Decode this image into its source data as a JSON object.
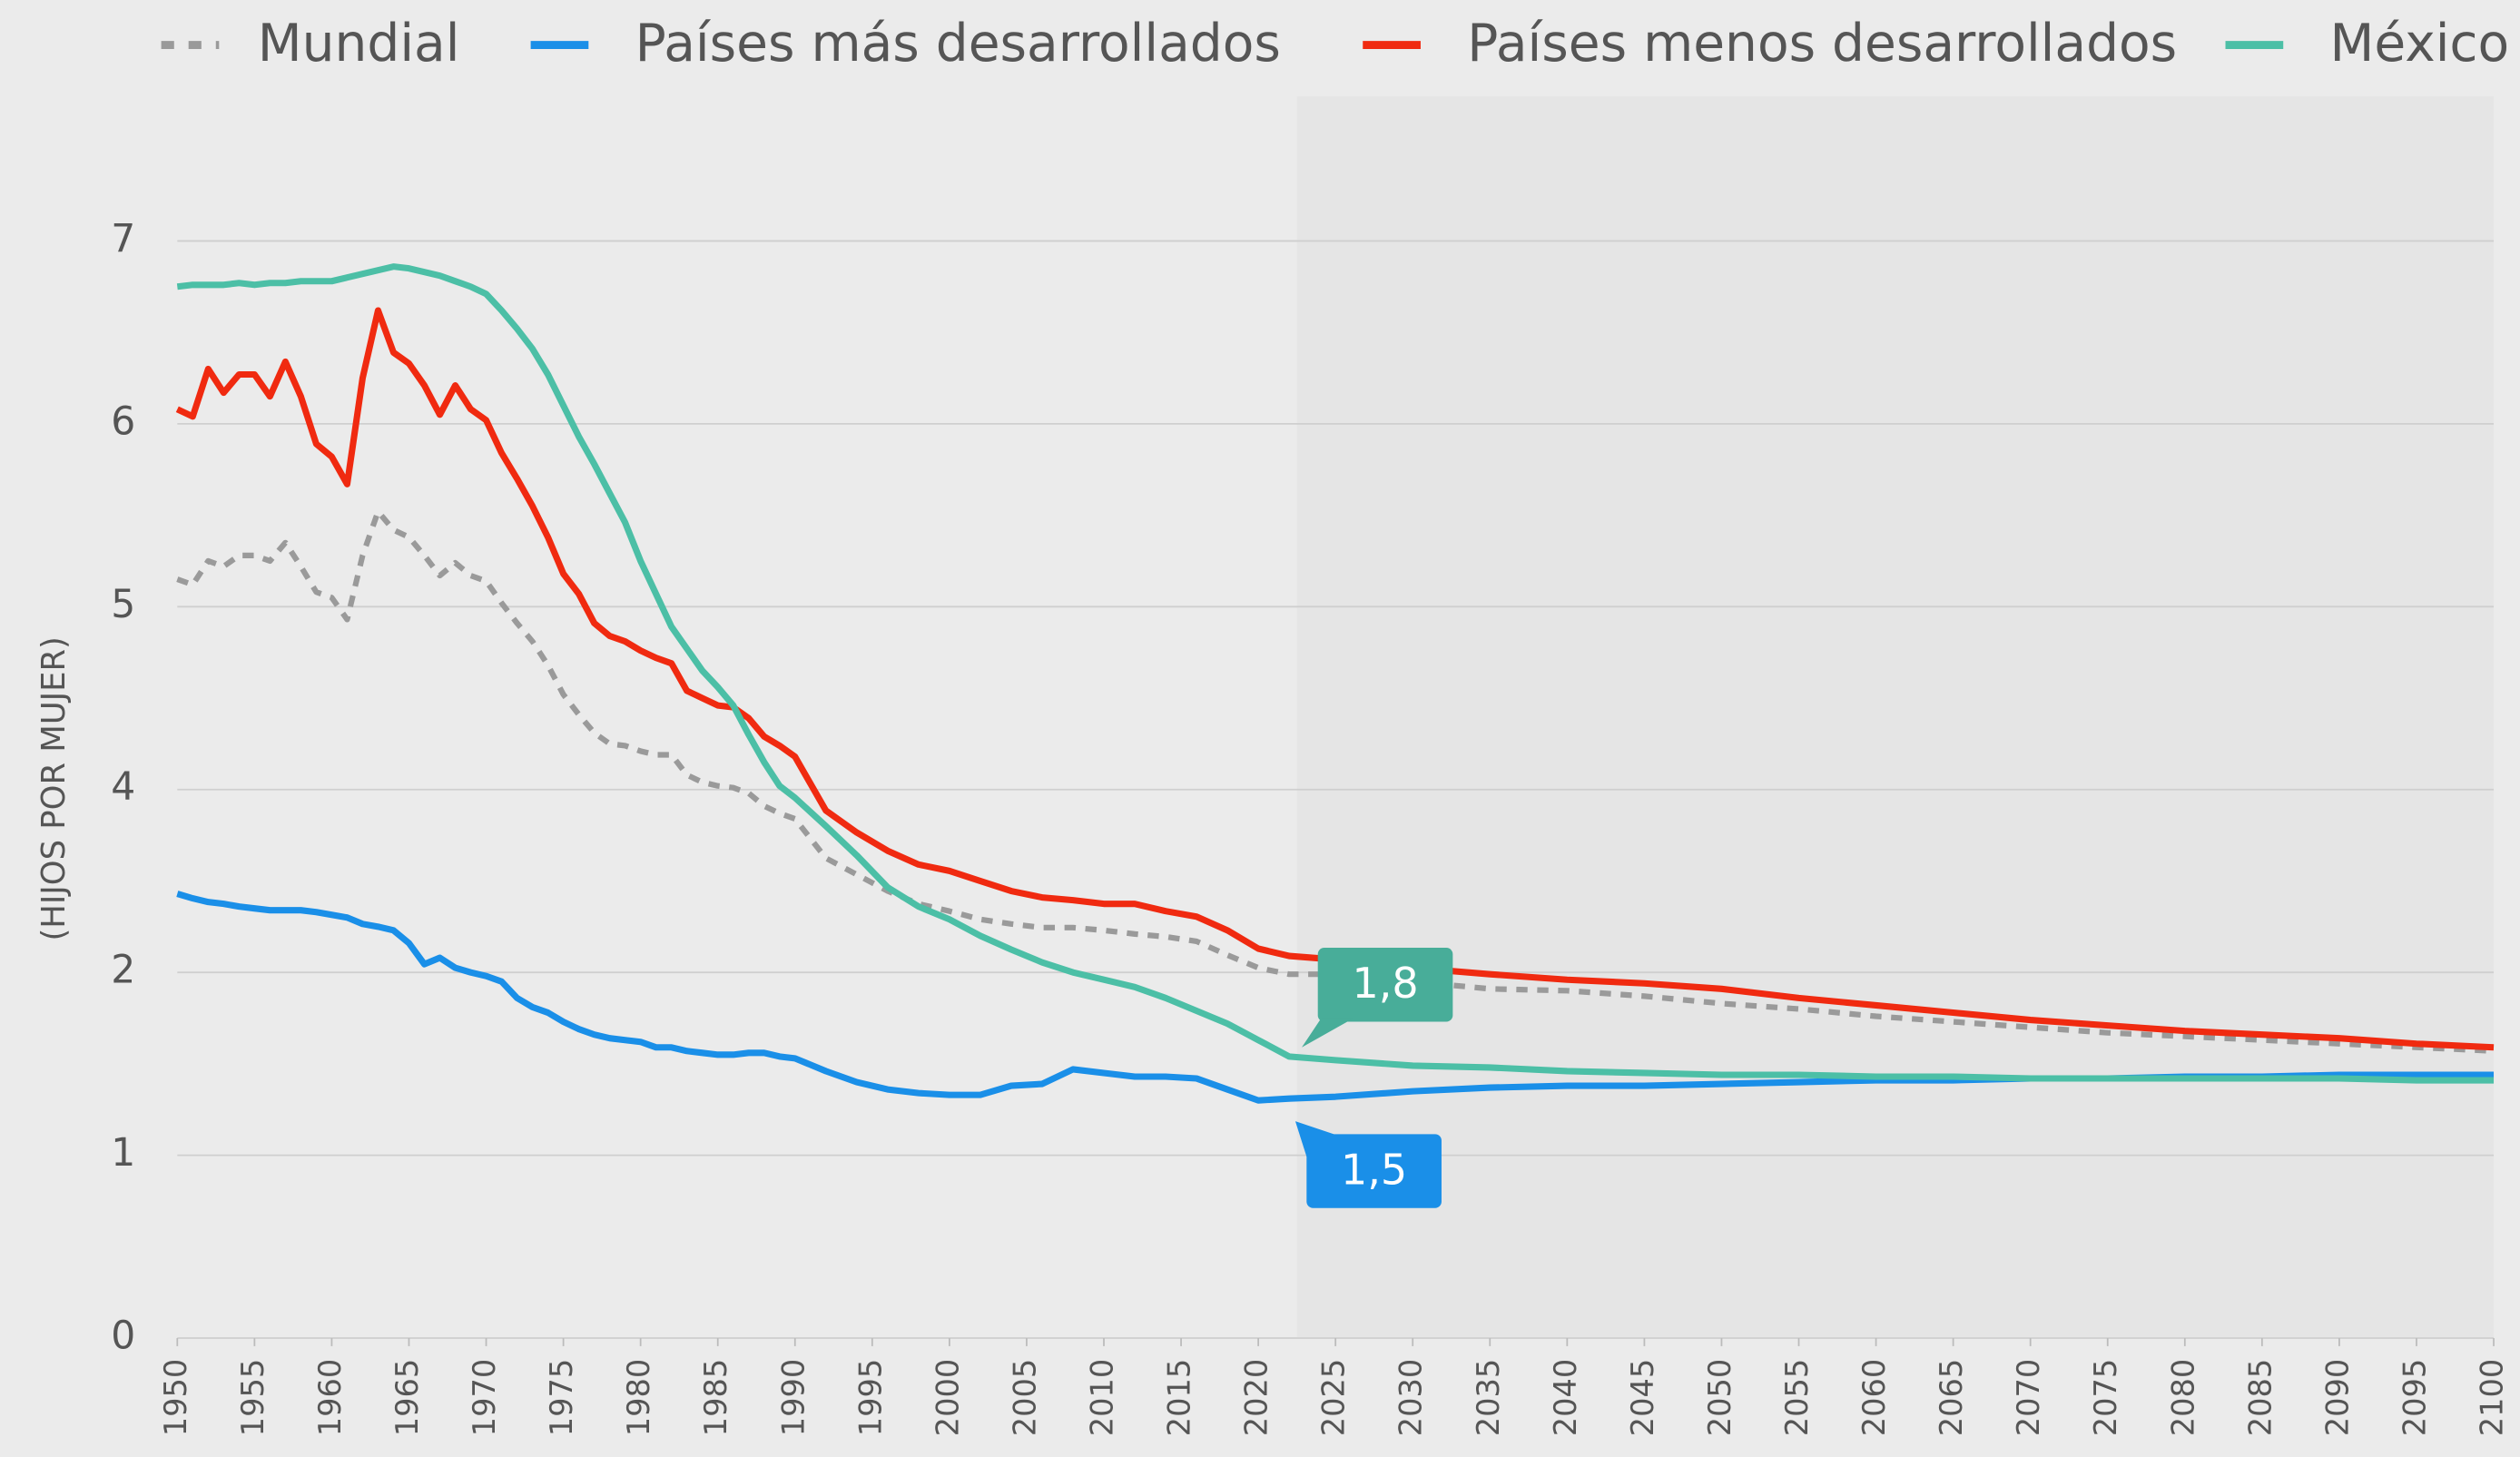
{
  "chart_data": {
    "type": "line",
    "y_label": "(HIJOS POR MUJER)",
    "x": [
      1950,
      1951,
      1952,
      1953,
      1954,
      1955,
      1956,
      1957,
      1958,
      1959,
      1960,
      1961,
      1962,
      1963,
      1964,
      1965,
      1966,
      1967,
      1968,
      1969,
      1970,
      1971,
      1972,
      1973,
      1974,
      1975,
      1976,
      1977,
      1978,
      1979,
      1980,
      1981,
      1982,
      1983,
      1984,
      1985,
      1986,
      1987,
      1988,
      1989,
      1990,
      1992,
      1994,
      1996,
      1998,
      2000,
      2002,
      2004,
      2006,
      2008,
      2010,
      2012,
      2014,
      2016,
      2018,
      2020,
      2022,
      2025,
      2030,
      2035,
      2040,
      2045,
      2050,
      2055,
      2060,
      2065,
      2070,
      2075,
      2080,
      2085,
      2090,
      2095,
      2100
    ],
    "series": [
      {
        "name": "Mundial",
        "color": "#9a9a9a",
        "dash": true,
        "values": [
          5.15,
          5.12,
          5.25,
          5.22,
          5.28,
          5.28,
          5.25,
          5.35,
          5.22,
          5.08,
          5.05,
          4.93,
          5.28,
          5.52,
          5.42,
          5.38,
          5.28,
          5.17,
          5.24,
          5.17,
          5.14,
          5.02,
          4.91,
          4.81,
          4.68,
          4.52,
          4.41,
          4.31,
          4.25,
          4.24,
          4.21,
          4.19,
          4.19,
          4.08,
          4.04,
          4.02,
          4.01,
          3.96,
          3.82,
          3.74,
          3.68,
          3.25,
          3.07,
          2.89,
          2.75,
          2.67,
          2.58,
          2.53,
          2.49,
          2.49,
          2.46,
          2.42,
          2.39,
          2.34,
          2.19,
          2.05,
          1.99,
          1.99,
          1.95,
          1.91,
          1.9,
          1.87,
          1.83,
          1.8,
          1.76,
          1.73,
          1.7,
          1.67,
          1.65,
          1.63,
          1.61,
          1.59,
          1.57
        ]
      },
      {
        "name": "Países más desarrollados",
        "color": "#1a8fe8",
        "dash": false,
        "values": [
          2.86,
          2.81,
          2.77,
          2.75,
          2.72,
          2.7,
          2.68,
          2.68,
          2.68,
          2.66,
          2.63,
          2.6,
          2.53,
          2.5,
          2.46,
          2.32,
          2.09,
          2.16,
          2.05,
          2.0,
          1.98,
          1.95,
          1.86,
          1.81,
          1.78,
          1.73,
          1.69,
          1.66,
          1.64,
          1.63,
          1.62,
          1.59,
          1.59,
          1.57,
          1.56,
          1.55,
          1.55,
          1.56,
          1.56,
          1.54,
          1.53,
          1.46,
          1.4,
          1.36,
          1.34,
          1.33,
          1.33,
          1.38,
          1.39,
          1.47,
          1.45,
          1.43,
          1.43,
          1.42,
          1.36,
          1.3,
          1.31,
          1.32,
          1.35,
          1.37,
          1.38,
          1.38,
          1.39,
          1.4,
          1.41,
          1.41,
          1.42,
          1.42,
          1.43,
          1.43,
          1.44,
          1.44,
          1.44
        ]
      },
      {
        "name": "Países menos desarrollados",
        "color": "#f02a10",
        "dash": false,
        "values": [
          6.08,
          6.04,
          6.3,
          6.17,
          6.27,
          6.27,
          6.15,
          6.34,
          6.15,
          5.89,
          5.82,
          5.67,
          6.25,
          6.62,
          6.39,
          6.33,
          6.21,
          6.05,
          6.21,
          6.08,
          6.02,
          5.84,
          5.7,
          5.55,
          5.38,
          5.18,
          5.07,
          4.91,
          4.84,
          4.81,
          4.76,
          4.72,
          4.69,
          4.54,
          4.5,
          4.46,
          4.45,
          4.39,
          4.29,
          4.24,
          4.18,
          3.77,
          3.53,
          3.33,
          3.18,
          3.11,
          3.0,
          2.89,
          2.82,
          2.79,
          2.75,
          2.75,
          2.67,
          2.61,
          2.46,
          2.26,
          2.18,
          2.14,
          2.05,
          1.99,
          1.96,
          1.94,
          1.91,
          1.86,
          1.82,
          1.78,
          1.74,
          1.71,
          1.68,
          1.66,
          1.64,
          1.61,
          1.59
        ]
      },
      {
        "name": "México",
        "color": "#4cbfa6",
        "dash": false,
        "values": [
          6.75,
          6.76,
          6.76,
          6.76,
          6.77,
          6.76,
          6.77,
          6.77,
          6.78,
          6.78,
          6.78,
          6.8,
          6.82,
          6.84,
          6.86,
          6.85,
          6.83,
          6.81,
          6.78,
          6.75,
          6.71,
          6.62,
          6.52,
          6.41,
          6.27,
          6.1,
          5.93,
          5.78,
          5.62,
          5.46,
          5.25,
          5.07,
          4.89,
          4.77,
          4.65,
          4.56,
          4.46,
          4.3,
          4.15,
          4.02,
          3.91,
          3.6,
          3.28,
          2.93,
          2.72,
          2.58,
          2.4,
          2.25,
          2.11,
          2.0,
          1.96,
          1.92,
          1.86,
          1.79,
          1.72,
          1.63,
          1.54,
          1.52,
          1.49,
          1.48,
          1.46,
          1.45,
          1.44,
          1.44,
          1.43,
          1.43,
          1.42,
          1.42,
          1.42,
          1.42,
          1.42,
          1.41,
          1.41
        ]
      }
    ],
    "annotations": [
      {
        "text": "1,8",
        "color": "#48ad99"
      },
      {
        "text": "1,5",
        "color": "#1a8fe8"
      }
    ],
    "xlim": [
      1950,
      2100
    ],
    "xticks": [
      1950,
      1955,
      1960,
      1965,
      1970,
      1975,
      1980,
      1985,
      1990,
      1995,
      2000,
      2005,
      2010,
      2015,
      2020,
      2025,
      2030,
      2035,
      2040,
      2045,
      2050,
      2055,
      2060,
      2065,
      2070,
      2075,
      2080,
      2085,
      2090,
      2095,
      2100
    ],
    "ylim": [
      0,
      7
    ],
    "yticks": [
      0,
      1,
      2,
      4,
      5,
      6,
      7
    ],
    "grid": true,
    "legend": "top"
  }
}
